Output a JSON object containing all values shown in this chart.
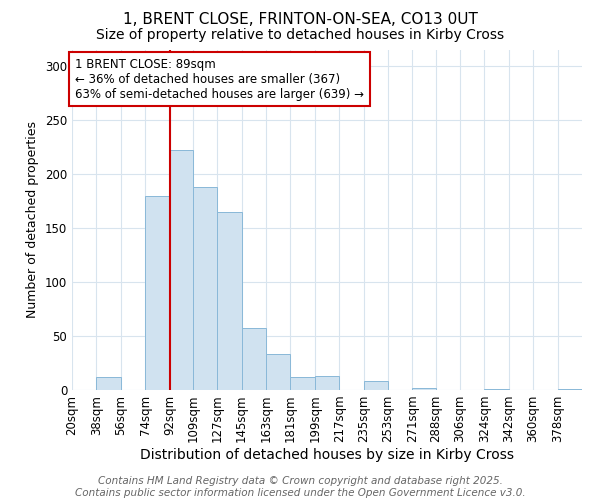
{
  "title1": "1, BRENT CLOSE, FRINTON-ON-SEA, CO13 0UT",
  "title2": "Size of property relative to detached houses in Kirby Cross",
  "xlabel": "Distribution of detached houses by size in Kirby Cross",
  "ylabel": "Number of detached properties",
  "bin_labels": [
    "20sqm",
    "38sqm",
    "56sqm",
    "74sqm",
    "92sqm",
    "109sqm",
    "127sqm",
    "145sqm",
    "163sqm",
    "181sqm",
    "199sqm",
    "217sqm",
    "235sqm",
    "253sqm",
    "271sqm",
    "288sqm",
    "306sqm",
    "324sqm",
    "342sqm",
    "360sqm",
    "378sqm"
  ],
  "bin_edges": [
    20,
    38,
    56,
    74,
    92,
    109,
    127,
    145,
    163,
    181,
    199,
    217,
    235,
    253,
    271,
    288,
    306,
    324,
    342,
    360,
    378,
    396
  ],
  "counts": [
    0,
    12,
    0,
    180,
    222,
    188,
    165,
    57,
    33,
    12,
    13,
    0,
    8,
    0,
    2,
    0,
    0,
    1,
    0,
    0,
    1
  ],
  "bar_facecolor": "#d0e2f0",
  "bar_edgecolor": "#89b8d8",
  "vline_x": 92,
  "vline_color": "#cc0000",
  "annotation_line1": "1 BRENT CLOSE: 89sqm",
  "annotation_line2": "← 36% of detached houses are smaller (367)",
  "annotation_line3": "63% of semi-detached houses are larger (639) →",
  "annotation_box_color": "#ffffff",
  "annotation_box_edgecolor": "#cc0000",
  "ylim": [
    0,
    315
  ],
  "yticks": [
    0,
    50,
    100,
    150,
    200,
    250,
    300
  ],
  "bg_color": "#ffffff",
  "grid_color": "#d8e4ee",
  "footer_line1": "Contains HM Land Registry data © Crown copyright and database right 2025.",
  "footer_line2": "Contains public sector information licensed under the Open Government Licence v3.0.",
  "title_fontsize": 11,
  "subtitle_fontsize": 10,
  "xlabel_fontsize": 10,
  "ylabel_fontsize": 9,
  "tick_fontsize": 8.5,
  "footer_fontsize": 7.5,
  "ann_fontsize": 8.5
}
